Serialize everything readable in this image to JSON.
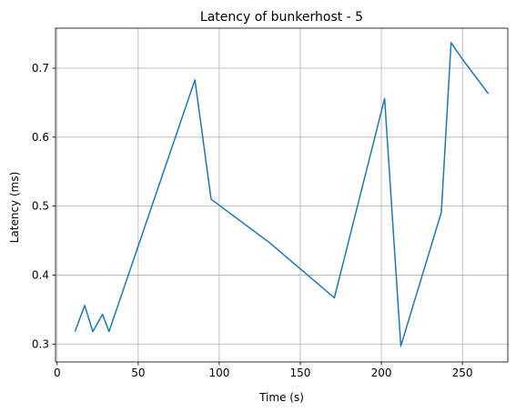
{
  "chart_data": {
    "type": "line",
    "title": "Latency of bunkerhost - 5",
    "xlabel": "Time (s)",
    "ylabel": "Latency (ms)",
    "xlim": [
      -1,
      278
    ],
    "ylim": [
      0.274,
      0.758
    ],
    "xticks": [
      0,
      50,
      100,
      150,
      200,
      250
    ],
    "yticks": [
      0.3,
      0.4,
      0.5,
      0.6,
      0.7
    ],
    "xtick_labels": [
      "0",
      "50",
      "100",
      "150",
      "200",
      "250"
    ],
    "ytick_labels": [
      "0.3",
      "0.4",
      "0.5",
      "0.6",
      "0.7"
    ],
    "grid": true,
    "series": [
      {
        "color": "#1f77b4",
        "x": [
          11,
          17,
          22,
          28,
          32,
          85,
          95,
          131,
          171,
          202,
          212,
          237,
          243,
          250,
          266
        ],
        "y": [
          0.318,
          0.356,
          0.318,
          0.343,
          0.318,
          0.683,
          0.51,
          0.447,
          0.367,
          0.656,
          0.297,
          0.491,
          0.737,
          0.713,
          0.663
        ]
      }
    ]
  }
}
